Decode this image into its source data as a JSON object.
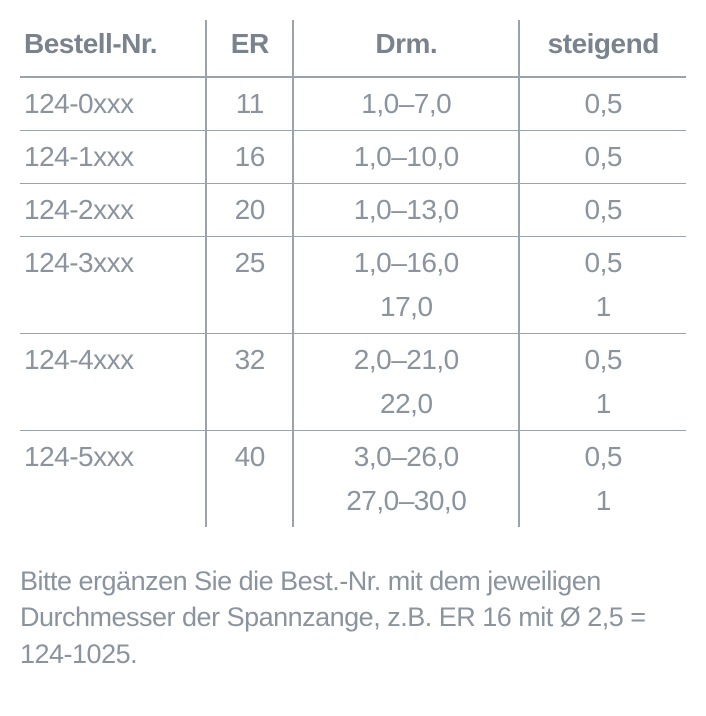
{
  "table": {
    "headers": [
      "Bestell-Nr.",
      "ER",
      "Drm.",
      "steigend"
    ],
    "column_widths_pct": [
      28,
      13,
      34,
      25
    ],
    "border_color": "#9aa3ac",
    "text_color": "#8b949e",
    "header_color": "#7a838d",
    "header_fontsize": 28,
    "cell_fontsize": 28,
    "rows": [
      {
        "bestell": "124-0xxx",
        "er": "11",
        "drm": "1,0–7,0",
        "steigend": "0,5"
      },
      {
        "bestell": "124-1xxx",
        "er": "16",
        "drm": "1,0–10,0",
        "steigend": "0,5"
      },
      {
        "bestell": "124-2xxx",
        "er": "20",
        "drm": "1,0–13,0",
        "steigend": "0,5"
      },
      {
        "bestell": "124-3xxx",
        "er": "25",
        "drm": "1,0–16,0",
        "steigend": "0,5"
      },
      {
        "bestell": "",
        "er": "",
        "drm": "17,0",
        "steigend": "1"
      },
      {
        "bestell": "124-4xxx",
        "er": "32",
        "drm": "2,0–21,0",
        "steigend": "0,5"
      },
      {
        "bestell": "",
        "er": "",
        "drm": "22,0",
        "steigend": "1"
      },
      {
        "bestell": "124-5xxx",
        "er": "40",
        "drm": "3,0–26,0",
        "steigend": "0,5"
      },
      {
        "bestell": "",
        "er": "",
        "drm": "27,0–30,0",
        "steigend": "1"
      }
    ]
  },
  "footnote": "Bitte ergänzen Sie die Best.-Nr. mit dem jeweiligen Durchmesser der Spannzange, z.B. ER 16 mit Ø 2,5 = 124-1025."
}
